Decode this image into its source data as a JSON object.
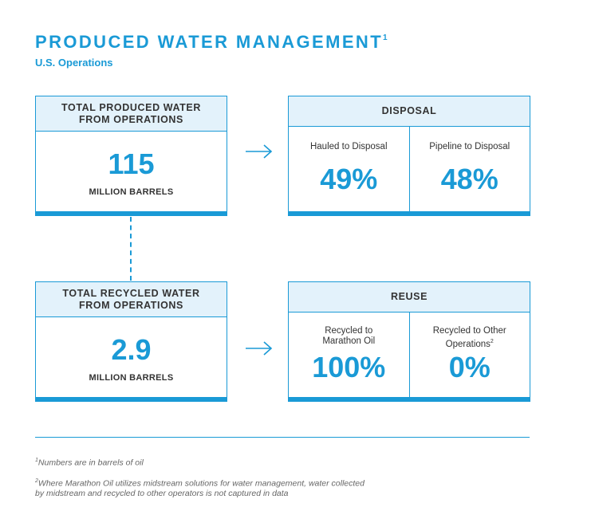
{
  "header": {
    "title": "PRODUCED WATER MANAGEMENT",
    "title_note": "1",
    "subtitle": "U.S. Operations"
  },
  "produced": {
    "heading": "TOTAL PRODUCED WATER\nFROM OPERATIONS",
    "value": "115",
    "unit": "MILLION BARRELS"
  },
  "recycled": {
    "heading": "TOTAL RECYCLED WATER\nFROM OPERATIONS",
    "value": "2.9",
    "unit": "MILLION BARRELS"
  },
  "disposal": {
    "heading": "DISPOSAL",
    "items": [
      {
        "label": "Hauled to Disposal",
        "value": "49%"
      },
      {
        "label": "Pipeline to Disposal",
        "value": "48%"
      }
    ]
  },
  "reuse": {
    "heading": "REUSE",
    "items": [
      {
        "label": "Recycled to\nMarathon Oil",
        "value": "100%"
      },
      {
        "label": "Recycled to Other\nOperations",
        "note": "2",
        "value": "0%"
      }
    ]
  },
  "footnotes": {
    "note1_mark": "1",
    "note1": "Numbers are in barrels of oil",
    "note2_mark": "2",
    "note2_line1": "Where Marathon Oil utilizes midstream solutions for water management, water collected",
    "note2_line2": "by midstream and recycled to other operators is not captured in data"
  },
  "colors": {
    "accent": "#1a9ad6",
    "header_fill": "#e3f2fb",
    "text": "#333333"
  }
}
